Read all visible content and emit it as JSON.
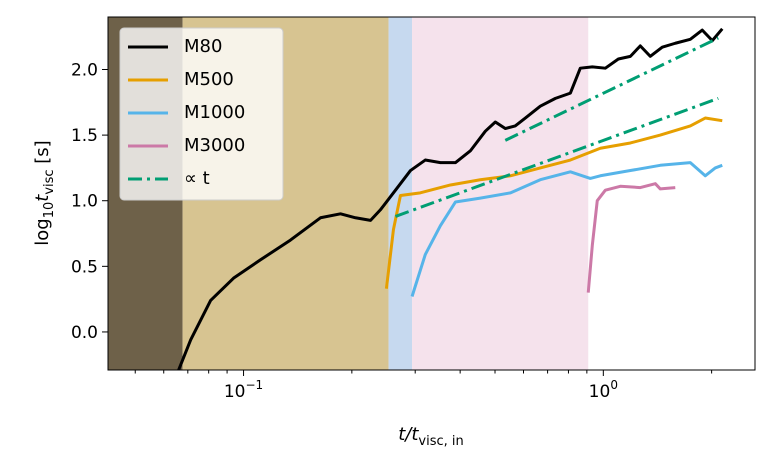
{
  "chart_data": {
    "type": "line",
    "xscale": "log",
    "xlabel": [
      "t/t",
      "visc, in"
    ],
    "ylabel": [
      "log",
      "10",
      "t",
      "visc",
      " [s]"
    ],
    "xlim": [
      0.042,
      2.64
    ],
    "ylim": [
      -0.29,
      2.4
    ],
    "xticks": [
      {
        "value": 0.1,
        "label": "10",
        "exponent": "−1"
      },
      {
        "value": 1,
        "label": "10",
        "exponent": "0"
      }
    ],
    "xminor": [
      0.05,
      0.06,
      0.07,
      0.08,
      0.09,
      0.2,
      0.3,
      0.4,
      0.5,
      0.6,
      0.7,
      0.8,
      0.9,
      2
    ],
    "yticks": [
      {
        "value": 0,
        "label": "0.0"
      },
      0.5,
      {
        "value": 1,
        "label": "1.0"
      },
      1.5,
      {
        "value": 2,
        "label": "2.0"
      }
    ],
    "spans": [
      {
        "x": [
          0.042,
          0.0677
        ],
        "color": "#6e6149"
      },
      {
        "x": [
          0.0677,
          0.253
        ],
        "color": "#d7c491"
      },
      {
        "x": [
          0.253,
          0.294
        ],
        "color": "#c6d9ef"
      },
      {
        "x": [
          0.294,
          0.908
        ],
        "color": "#f5e2ec"
      }
    ],
    "legend": "upper left",
    "series": [
      {
        "name": "M80",
        "color": "#000000",
        "dash": "solid",
        "x": [
          0.066,
          0.0713,
          0.081,
          0.0938,
          0.1115,
          0.135,
          0.1636,
          0.186,
          0.2047,
          0.2254,
          0.24,
          0.2644,
          0.291,
          0.32,
          0.3525,
          0.388,
          0.427,
          0.47,
          0.501,
          0.534,
          0.569,
          0.607,
          0.668,
          0.736,
          0.81,
          0.863,
          0.932,
          1.013,
          1.101,
          1.189,
          1.267,
          1.351,
          1.458,
          1.585,
          1.745,
          1.884,
          2.009,
          2.141
        ],
        "values": [
          -0.29,
          -0.06,
          0.24,
          0.41,
          0.55,
          0.7,
          0.87,
          0.9,
          0.87,
          0.85,
          0.93,
          1.08,
          1.23,
          1.31,
          1.29,
          1.29,
          1.38,
          1.53,
          1.6,
          1.55,
          1.57,
          1.63,
          1.72,
          1.78,
          1.82,
          2.01,
          2.02,
          2.01,
          2.08,
          2.1,
          2.18,
          2.1,
          2.17,
          2.2,
          2.23,
          2.3,
          2.22,
          2.31
        ]
      },
      {
        "name": "M500",
        "color": "#e69f00",
        "dash": "solid",
        "x": [
          0.2495,
          0.261,
          0.273,
          0.31,
          0.376,
          0.455,
          0.552,
          0.668,
          0.81,
          0.981,
          1.189,
          1.44,
          1.745,
          1.92,
          2.141
        ],
        "values": [
          0.33,
          0.78,
          1.04,
          1.06,
          1.12,
          1.16,
          1.19,
          1.25,
          1.31,
          1.4,
          1.44,
          1.5,
          1.57,
          1.63,
          1.61
        ]
      },
      {
        "name": "M1000",
        "color": "#56b4e9",
        "dash": "solid",
        "x": [
          0.294,
          0.32,
          0.3525,
          0.388,
          0.455,
          0.552,
          0.668,
          0.81,
          0.92,
          0.981,
          1.189,
          1.44,
          1.745,
          1.92,
          2.047,
          2.141
        ],
        "values": [
          0.27,
          0.59,
          0.81,
          0.99,
          1.02,
          1.06,
          1.16,
          1.22,
          1.17,
          1.19,
          1.23,
          1.27,
          1.29,
          1.19,
          1.25,
          1.27
        ]
      },
      {
        "name": "M3000",
        "color": "#cc79a7",
        "dash": "solid",
        "x": [
          0.908,
          0.932,
          0.962,
          1.013,
          1.115,
          1.267,
          1.395,
          1.44,
          1.585
        ],
        "values": [
          0.3,
          0.66,
          1.0,
          1.08,
          1.11,
          1.1,
          1.13,
          1.09,
          1.1
        ]
      },
      {
        "name": "∝ t",
        "color": "#009e73",
        "dash": "dashdot",
        "x": [
          0.2644,
          2.087,
          null,
          0.534,
          2.087
        ],
        "values": [
          0.88,
          1.78,
          null,
          1.46,
          2.24
        ]
      }
    ]
  }
}
